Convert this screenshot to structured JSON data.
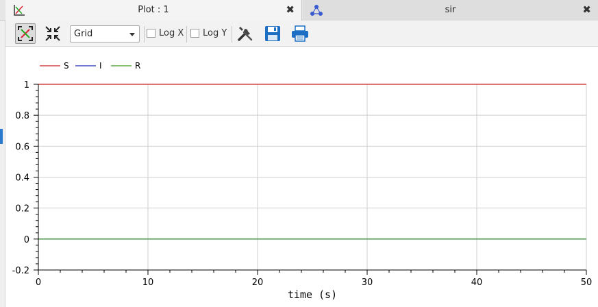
{
  "tabs": [
    {
      "label": "Plot : 1",
      "icon": "plot-icon",
      "close": "✖"
    },
    {
      "label": "sir",
      "icon": "model-icon",
      "close": "✖"
    }
  ],
  "toolbar": {
    "grid_select": "Grid",
    "logx_label": "Log X",
    "logy_label": "Log Y",
    "logx_checked": false,
    "logy_checked": false
  },
  "chart_data": {
    "type": "line",
    "xlabel": "time (s)",
    "ylabel": "",
    "xlim": [
      0,
      50
    ],
    "ylim": [
      -0.2,
      1
    ],
    "xticks": [
      0,
      10,
      20,
      30,
      40,
      50
    ],
    "yticks": [
      -0.2,
      0,
      0.2,
      0.4,
      0.6,
      0.8,
      1
    ],
    "xtick_labels": [
      "0",
      "10",
      "20",
      "30",
      "40",
      "50"
    ],
    "ytick_labels": [
      "-0.2",
      "0",
      "0.2",
      "0.4",
      "0.6",
      "0.8",
      "1"
    ],
    "grid": true,
    "legend_position": "top-left",
    "series": [
      {
        "name": "S",
        "color": "#cc2222",
        "x": [
          0,
          50
        ],
        "y": [
          1,
          1
        ]
      },
      {
        "name": "I",
        "color": "#1f2bb8",
        "x": [
          0,
          50
        ],
        "y": [
          0,
          0
        ]
      },
      {
        "name": "R",
        "color": "#3a9a20",
        "x": [
          0,
          50
        ],
        "y": [
          0,
          0
        ]
      }
    ]
  }
}
